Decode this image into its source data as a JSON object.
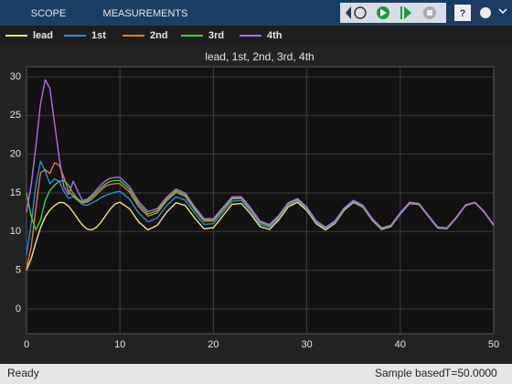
{
  "toolbar": {
    "tabs": [
      "SCOPE",
      "MEASUREMENTS"
    ]
  },
  "status": {
    "left": "Ready",
    "mode": "Sample based",
    "time": "T=50.0000"
  },
  "chart_data": {
    "type": "line",
    "title": "lead, 1st, 2nd, 3rd, 4th",
    "x": [
      0,
      0.5,
      1,
      1.5,
      2,
      2.5,
      3,
      3.5,
      4,
      4.5,
      5,
      5.5,
      6,
      6.5,
      7,
      7.5,
      8,
      8.5,
      9,
      9.5,
      10,
      11,
      12,
      13,
      14,
      15,
      16,
      17,
      18,
      19,
      20,
      21,
      22,
      23,
      24,
      25,
      26,
      27,
      28,
      29,
      30,
      31,
      32,
      33,
      34,
      35,
      36,
      37,
      38,
      39,
      40,
      41,
      42,
      43,
      44,
      45,
      46,
      47,
      48,
      49,
      50
    ],
    "series": [
      {
        "name": "lead",
        "color": "#f2e27a",
        "values": [
          5.0,
          6.5,
          8.6,
          10.5,
          11.9,
          12.8,
          13.36,
          13.76,
          13.73,
          13.28,
          12.51,
          11.62,
          10.82,
          10.31,
          10.22,
          10.56,
          11.25,
          12.13,
          12.97,
          13.58,
          13.8,
          12.97,
          11.25,
          10.22,
          10.82,
          12.51,
          13.73,
          13.36,
          11.74,
          10.36,
          10.49,
          12.01,
          13.52,
          13.63,
          12.24,
          10.63,
          10.27,
          11.51,
          13.19,
          13.78,
          12.73,
          11.01,
          10.2,
          11.04,
          12.77,
          13.78,
          13.16,
          11.47,
          10.27,
          10.65,
          12.28,
          13.65,
          13.5,
          11.97,
          10.47,
          10.37,
          11.77,
          13.38,
          13.72,
          12.48,
          10.8
        ]
      },
      {
        "name": "1st",
        "color": "#2b8fd9",
        "values": [
          7.0,
          11.0,
          16.0,
          19.1,
          17.8,
          16.2,
          16.8,
          16.5,
          15.2,
          14.3,
          14.5,
          14.0,
          13.5,
          13.4,
          13.7,
          14.0,
          14.4,
          14.7,
          14.9,
          15.1,
          15.2,
          14.24,
          12.4,
          11.26,
          11.76,
          13.36,
          14.5,
          14.06,
          12.37,
          10.93,
          11.01,
          12.48,
          13.94,
          14.01,
          12.59,
          10.94,
          10.55,
          11.77,
          13.42,
          13.99,
          12.92,
          11.18,
          10.36,
          11.18,
          12.9,
          13.89,
          13.26,
          11.56,
          10.36,
          10.73,
          12.35,
          13.71,
          13.56,
          12.02,
          10.52,
          10.41,
          11.81,
          13.42,
          13.75,
          12.51,
          10.83
        ]
      },
      {
        "name": "2nd",
        "color": "#e47c3a",
        "values": [
          5.2,
          8.0,
          13.0,
          17.6,
          18.0,
          17.5,
          18.9,
          18.6,
          17.0,
          15.2,
          14.6,
          14.1,
          13.7,
          13.8,
          14.2,
          14.8,
          15.4,
          15.9,
          16.1,
          16.2,
          16.2,
          15.14,
          13.22,
          12.0,
          12.43,
          13.97,
          15.05,
          14.55,
          12.82,
          11.34,
          11.37,
          12.81,
          14.24,
          14.29,
          12.83,
          11.17,
          10.75,
          11.95,
          13.59,
          14.14,
          13.05,
          11.3,
          10.47,
          11.28,
          12.99,
          13.98,
          13.34,
          11.63,
          10.42,
          10.78,
          12.4,
          13.76,
          13.6,
          12.06,
          10.55,
          10.44,
          11.83,
          13.44,
          13.77,
          12.53,
          10.84
        ]
      },
      {
        "name": "3rd",
        "color": "#3ecf3e",
        "values": [
          15.0,
          12.0,
          10.2,
          11.5,
          14.0,
          15.3,
          16.0,
          16.5,
          16.6,
          16.0,
          14.9,
          14.2,
          13.8,
          14.0,
          14.5,
          15.1,
          15.7,
          16.2,
          16.5,
          16.6,
          16.6,
          15.5,
          13.54,
          12.29,
          12.7,
          14.21,
          15.27,
          14.75,
          13.0,
          11.5,
          11.52,
          12.94,
          14.36,
          14.39,
          12.93,
          11.25,
          10.84,
          12.02,
          13.65,
          14.2,
          13.11,
          11.35,
          10.51,
          11.32,
          13.02,
          14.01,
          13.37,
          11.66,
          10.44,
          10.8,
          12.42,
          13.78,
          13.61,
          12.07,
          10.56,
          10.45,
          11.85,
          13.45,
          13.78,
          12.54,
          10.85
        ]
      },
      {
        "name": "4th",
        "color": "#b56ae6",
        "values": [
          12.5,
          16.0,
          21.0,
          26.5,
          29.6,
          28.5,
          24.0,
          19.5,
          15.8,
          14.8,
          16.5,
          15.2,
          14.0,
          14.2,
          14.7,
          15.4,
          16.1,
          16.6,
          16.9,
          17.0,
          17.0,
          15.87,
          13.87,
          12.59,
          12.96,
          14.45,
          15.49,
          14.95,
          13.18,
          11.66,
          11.67,
          13.08,
          14.48,
          14.5,
          13.03,
          11.34,
          10.92,
          12.1,
          13.72,
          14.26,
          13.16,
          11.4,
          10.56,
          11.36,
          13.06,
          14.04,
          13.4,
          11.68,
          10.47,
          10.83,
          12.44,
          13.79,
          13.63,
          12.09,
          10.58,
          10.47,
          11.86,
          13.46,
          13.79,
          12.54,
          10.86
        ]
      }
    ],
    "xlim": [
      0,
      50
    ],
    "ylim": [
      -3.2,
      31.3
    ],
    "xticks": [
      0,
      10,
      20,
      30,
      40,
      50
    ],
    "yticks": [
      0,
      5,
      10,
      15,
      20,
      25,
      30
    ],
    "grid": true
  }
}
